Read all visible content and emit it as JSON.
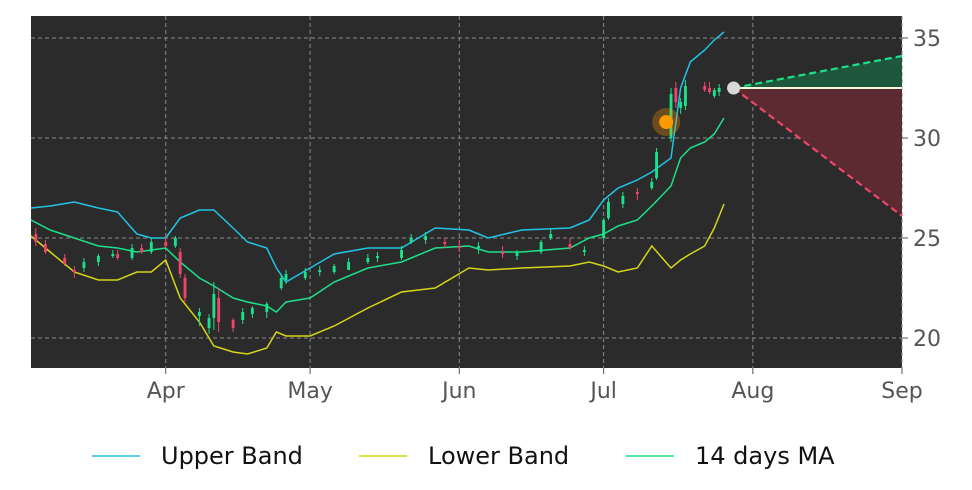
{
  "chart_data": {
    "type": "candlestick",
    "x_labels": [
      "Apr",
      "May",
      "Jun",
      "Jul",
      "Aug",
      "Sep"
    ],
    "x_ticks": [
      "2024-04-01",
      "2024-05-01",
      "2024-06-01",
      "2024-07-01",
      "2024-08-01",
      "2024-09-01"
    ],
    "xlim": [
      "2024-03-04",
      "2024-09-01"
    ],
    "ylim": [
      18.5,
      36.1
    ],
    "y_ticks": [
      20,
      25,
      30,
      35
    ],
    "y_tick_labels": [
      "20",
      "25",
      "30",
      "35"
    ],
    "y_axis_side": "right",
    "grid": true,
    "background": "#2b2b2b",
    "legend_position": "bottom",
    "colors": {
      "upper_band": "#22c4e6",
      "lower_band": "#d6d619",
      "ma": "#1de08a",
      "up_candle": "#1de08a",
      "down_candle": "#f0456a",
      "marker": "#ff9900",
      "forecast_up": "#1de08a",
      "forecast_down": "#f0456a",
      "forecast_up_fill": "#1f5a3d",
      "forecast_down_fill": "#5e2b32",
      "reference_line": "#f5f5dc",
      "start_dot": "#d8d8d8"
    },
    "series": [
      {
        "name": "Upper Band",
        "color": "#22c4e6",
        "points": [
          [
            "2024-03-04",
            26.5
          ],
          [
            "2024-03-08",
            26.6
          ],
          [
            "2024-03-13",
            26.8
          ],
          [
            "2024-03-18",
            26.5
          ],
          [
            "2024-03-22",
            26.3
          ],
          [
            "2024-03-26",
            25.2
          ],
          [
            "2024-03-29",
            25.0
          ],
          [
            "2024-04-01",
            25.0
          ],
          [
            "2024-04-04",
            26.0
          ],
          [
            "2024-04-08",
            26.4
          ],
          [
            "2024-04-11",
            26.4
          ],
          [
            "2024-04-15",
            25.5
          ],
          [
            "2024-04-18",
            24.8
          ],
          [
            "2024-04-22",
            24.5
          ],
          [
            "2024-04-24",
            23.5
          ],
          [
            "2024-04-26",
            22.8
          ],
          [
            "2024-05-01",
            23.5
          ],
          [
            "2024-05-06",
            24.2
          ],
          [
            "2024-05-13",
            24.5
          ],
          [
            "2024-05-20",
            24.5
          ],
          [
            "2024-05-27",
            25.5
          ],
          [
            "2024-06-03",
            25.4
          ],
          [
            "2024-06-07",
            25.0
          ],
          [
            "2024-06-14",
            25.4
          ],
          [
            "2024-06-24",
            25.5
          ],
          [
            "2024-06-28",
            25.9
          ],
          [
            "2024-07-01",
            26.9
          ],
          [
            "2024-07-04",
            27.5
          ],
          [
            "2024-07-08",
            27.9
          ],
          [
            "2024-07-11",
            28.3
          ],
          [
            "2024-07-15",
            29.0
          ],
          [
            "2024-07-17",
            32.5
          ],
          [
            "2024-07-19",
            33.8
          ],
          [
            "2024-07-22",
            34.4
          ],
          [
            "2024-07-24",
            34.9
          ],
          [
            "2024-07-26",
            35.3
          ]
        ]
      },
      {
        "name": "Lower Band",
        "color": "#d6d619",
        "points": [
          [
            "2024-03-04",
            25.1
          ],
          [
            "2024-03-08",
            24.3
          ],
          [
            "2024-03-13",
            23.3
          ],
          [
            "2024-03-18",
            22.9
          ],
          [
            "2024-03-22",
            22.9
          ],
          [
            "2024-03-26",
            23.3
          ],
          [
            "2024-03-29",
            23.3
          ],
          [
            "2024-04-01",
            23.9
          ],
          [
            "2024-04-04",
            22.0
          ],
          [
            "2024-04-08",
            20.8
          ],
          [
            "2024-04-11",
            19.6
          ],
          [
            "2024-04-15",
            19.3
          ],
          [
            "2024-04-18",
            19.2
          ],
          [
            "2024-04-22",
            19.5
          ],
          [
            "2024-04-24",
            20.3
          ],
          [
            "2024-04-26",
            20.1
          ],
          [
            "2024-05-01",
            20.1
          ],
          [
            "2024-05-06",
            20.6
          ],
          [
            "2024-05-13",
            21.5
          ],
          [
            "2024-05-20",
            22.3
          ],
          [
            "2024-05-27",
            22.5
          ],
          [
            "2024-06-03",
            23.5
          ],
          [
            "2024-06-07",
            23.4
          ],
          [
            "2024-06-14",
            23.5
          ],
          [
            "2024-06-24",
            23.6
          ],
          [
            "2024-06-28",
            23.8
          ],
          [
            "2024-07-01",
            23.6
          ],
          [
            "2024-07-04",
            23.3
          ],
          [
            "2024-07-08",
            23.5
          ],
          [
            "2024-07-11",
            24.6
          ],
          [
            "2024-07-15",
            23.5
          ],
          [
            "2024-07-17",
            23.9
          ],
          [
            "2024-07-19",
            24.2
          ],
          [
            "2024-07-22",
            24.6
          ],
          [
            "2024-07-24",
            25.5
          ],
          [
            "2024-07-26",
            26.7
          ]
        ]
      },
      {
        "name": "14 days MA",
        "color": "#1de08a",
        "points": [
          [
            "2024-03-04",
            25.9
          ],
          [
            "2024-03-08",
            25.4
          ],
          [
            "2024-03-13",
            25.0
          ],
          [
            "2024-03-18",
            24.6
          ],
          [
            "2024-03-22",
            24.5
          ],
          [
            "2024-03-26",
            24.3
          ],
          [
            "2024-03-29",
            24.4
          ],
          [
            "2024-04-01",
            24.5
          ],
          [
            "2024-04-04",
            23.8
          ],
          [
            "2024-04-08",
            23.0
          ],
          [
            "2024-04-11",
            22.6
          ],
          [
            "2024-04-15",
            22.0
          ],
          [
            "2024-04-18",
            21.8
          ],
          [
            "2024-04-22",
            21.6
          ],
          [
            "2024-04-24",
            21.3
          ],
          [
            "2024-04-26",
            21.8
          ],
          [
            "2024-05-01",
            22.0
          ],
          [
            "2024-05-06",
            22.8
          ],
          [
            "2024-05-13",
            23.5
          ],
          [
            "2024-05-20",
            23.8
          ],
          [
            "2024-05-27",
            24.5
          ],
          [
            "2024-06-03",
            24.6
          ],
          [
            "2024-06-07",
            24.3
          ],
          [
            "2024-06-14",
            24.3
          ],
          [
            "2024-06-24",
            24.5
          ],
          [
            "2024-06-28",
            25.0
          ],
          [
            "2024-07-01",
            25.2
          ],
          [
            "2024-07-04",
            25.6
          ],
          [
            "2024-07-08",
            25.9
          ],
          [
            "2024-07-11",
            26.6
          ],
          [
            "2024-07-15",
            27.6
          ],
          [
            "2024-07-17",
            29.0
          ],
          [
            "2024-07-19",
            29.5
          ],
          [
            "2024-07-22",
            29.8
          ],
          [
            "2024-07-24",
            30.2
          ],
          [
            "2024-07-26",
            31.0
          ]
        ]
      }
    ],
    "candles": [
      [
        "2024-03-05",
        25.2,
        25.5,
        24.6,
        24.8
      ],
      [
        "2024-03-07",
        24.7,
        24.9,
        24.2,
        24.3
      ],
      [
        "2024-03-11",
        24.0,
        24.2,
        23.6,
        23.7
      ],
      [
        "2024-03-13",
        23.4,
        23.6,
        23.0,
        23.3
      ],
      [
        "2024-03-15",
        23.5,
        24.0,
        23.3,
        23.8
      ],
      [
        "2024-03-18",
        23.8,
        24.2,
        23.6,
        24.1
      ],
      [
        "2024-03-21",
        24.1,
        24.4,
        24.0,
        24.2
      ],
      [
        "2024-03-22",
        24.2,
        24.4,
        23.9,
        24.0
      ],
      [
        "2024-03-25",
        24.0,
        24.7,
        23.9,
        24.5
      ],
      [
        "2024-03-27",
        24.5,
        24.7,
        24.2,
        24.3
      ],
      [
        "2024-03-29",
        24.3,
        25.0,
        24.2,
        24.8
      ],
      [
        "2024-04-01",
        24.8,
        25.1,
        24.5,
        24.6
      ],
      [
        "2024-04-03",
        24.6,
        25.1,
        24.5,
        25.0
      ],
      [
        "2024-04-04",
        24.3,
        24.5,
        23.0,
        23.2
      ],
      [
        "2024-04-05",
        23.0,
        23.2,
        21.8,
        22.0
      ],
      [
        "2024-04-08",
        21.1,
        21.5,
        20.6,
        21.3
      ],
      [
        "2024-04-10",
        20.5,
        21.2,
        20.2,
        21.0
      ],
      [
        "2024-04-11",
        21.0,
        22.8,
        20.4,
        22.2
      ],
      [
        "2024-04-12",
        22.0,
        22.5,
        20.3,
        20.8
      ],
      [
        "2024-04-15",
        20.9,
        21.0,
        20.3,
        20.5
      ],
      [
        "2024-04-17",
        20.9,
        21.5,
        20.7,
        21.3
      ],
      [
        "2024-04-19",
        21.2,
        21.6,
        21.0,
        21.5
      ],
      [
        "2024-04-22",
        21.3,
        21.8,
        21.0,
        21.7
      ],
      [
        "2024-04-25",
        22.5,
        23.2,
        22.4,
        23.0
      ],
      [
        "2024-04-26",
        22.9,
        23.4,
        22.7,
        23.2
      ],
      [
        "2024-04-30",
        23.0,
        23.5,
        22.9,
        23.3
      ],
      [
        "2024-05-03",
        23.3,
        23.6,
        23.1,
        23.4
      ],
      [
        "2024-05-06",
        23.3,
        23.7,
        23.2,
        23.6
      ],
      [
        "2024-05-09",
        23.4,
        24.0,
        23.4,
        23.8
      ],
      [
        "2024-05-13",
        23.8,
        24.2,
        23.7,
        24.0
      ],
      [
        "2024-05-15",
        24.0,
        24.3,
        23.8,
        24.1
      ],
      [
        "2024-05-20",
        24.0,
        24.6,
        23.9,
        24.4
      ],
      [
        "2024-05-22",
        24.8,
        25.2,
        24.7,
        25.0
      ],
      [
        "2024-05-25",
        24.9,
        25.3,
        24.7,
        25.1
      ],
      [
        "2024-05-29",
        24.8,
        25.0,
        24.5,
        24.7
      ],
      [
        "2024-06-01",
        24.6,
        24.9,
        24.3,
        24.5
      ],
      [
        "2024-06-05",
        24.5,
        24.8,
        24.2,
        24.6
      ],
      [
        "2024-06-10",
        24.3,
        24.6,
        24.0,
        24.2
      ],
      [
        "2024-06-13",
        24.1,
        24.4,
        23.9,
        24.3
      ],
      [
        "2024-06-18",
        24.3,
        24.9,
        24.2,
        24.8
      ],
      [
        "2024-06-20",
        25.0,
        25.5,
        24.9,
        25.2
      ],
      [
        "2024-06-24",
        24.7,
        25.0,
        24.4,
        24.5
      ],
      [
        "2024-06-27",
        24.3,
        24.6,
        24.1,
        24.4
      ],
      [
        "2024-07-01",
        25.0,
        26.0,
        24.9,
        25.9
      ],
      [
        "2024-07-02",
        26.0,
        27.0,
        25.9,
        26.8
      ],
      [
        "2024-07-05",
        26.7,
        27.3,
        26.5,
        27.1
      ],
      [
        "2024-07-08",
        27.3,
        27.5,
        26.9,
        27.2
      ],
      [
        "2024-07-11",
        27.5,
        28.0,
        27.4,
        27.8
      ],
      [
        "2024-07-12",
        28.0,
        29.5,
        27.9,
        29.3
      ],
      [
        "2024-07-15",
        30.0,
        32.5,
        29.8,
        32.2
      ],
      [
        "2024-07-16",
        32.5,
        32.8,
        31.5,
        31.8
      ],
      [
        "2024-07-17",
        31.5,
        32.0,
        31.2,
        31.8
      ],
      [
        "2024-07-18",
        31.6,
        32.9,
        31.4,
        32.6
      ],
      [
        "2024-07-22",
        32.6,
        32.8,
        32.3,
        32.4
      ],
      [
        "2024-07-23",
        32.5,
        32.8,
        32.2,
        32.3
      ],
      [
        "2024-07-24",
        32.1,
        32.5,
        32.0,
        32.4
      ],
      [
        "2024-07-25",
        32.3,
        32.7,
        32.1,
        32.5
      ]
    ],
    "marker": {
      "x": "2024-07-14",
      "y": 30.8
    },
    "forecast": {
      "start": {
        "x": "2024-07-28",
        "y": 32.5
      },
      "upper_end": {
        "x": "2024-09-01",
        "y": 34.1
      },
      "lower_end": {
        "x": "2024-09-01",
        "y": 26.1
      }
    },
    "legend": [
      "Upper Band",
      "Lower Band",
      "14 days MA"
    ]
  }
}
